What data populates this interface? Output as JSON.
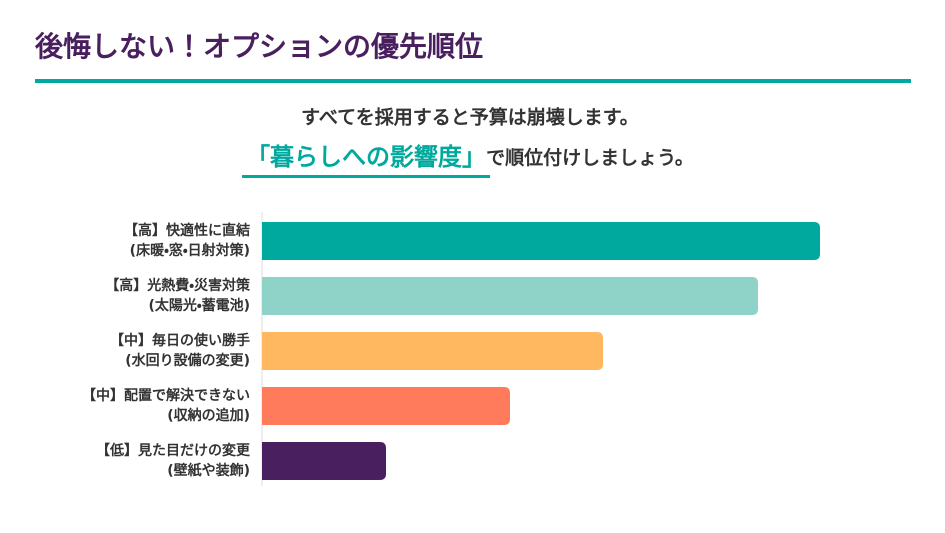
{
  "chart_data": {
    "type": "bar",
    "orientation": "horizontal",
    "title": "後悔しない！オプションの優先順位",
    "subtitle": "すべてを採用すると予算は崩壊します。",
    "highlight": "「暮らしへの影響度」",
    "subtitle_rest": "で順位付けしましょう。",
    "categories": [
      [
        "【高】快適性に直結",
        "(床暖・窓・日射対策)"
      ],
      [
        "【高】光熱費・災害対策",
        "(太陽光・蓄電池)"
      ],
      [
        "【中】毎日の使い勝手",
        "(水回り設備の変更)"
      ],
      [
        "【中】配置で解決できない",
        "(収納の追加)"
      ],
      [
        "【低】見た目だけの変更",
        "(壁紙や装飾)"
      ]
    ],
    "values": [
      90,
      80,
      55,
      40,
      20
    ],
    "colors": [
      "#00a99d",
      "#8fd3c8",
      "#ffb860",
      "#ff7b5c",
      "#4a1f5f"
    ],
    "xlim": [
      0,
      100
    ]
  }
}
